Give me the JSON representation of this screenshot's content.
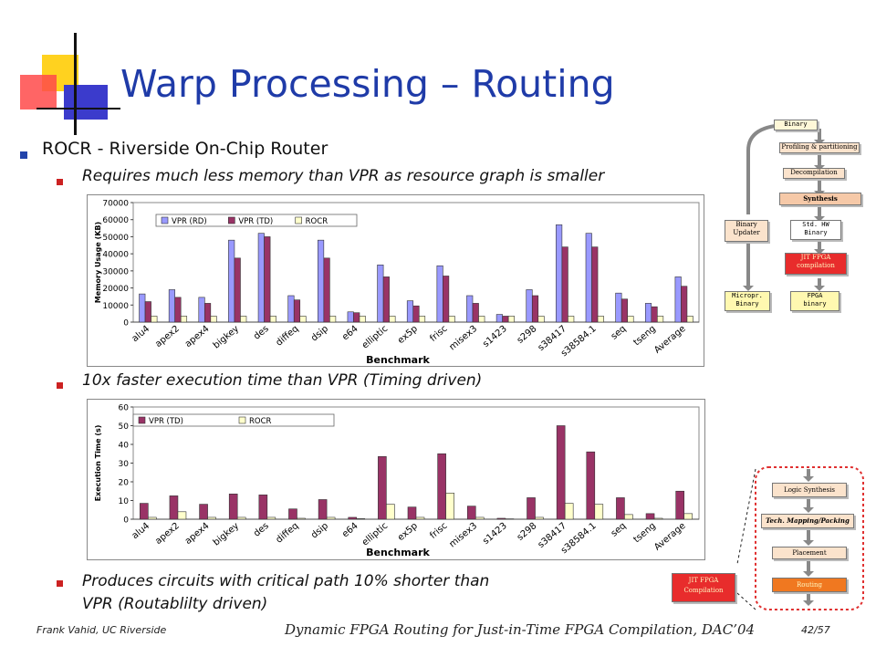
{
  "slide": {
    "title": "Warp Processing – Routing",
    "bullet1": "ROCR - Riverside On-Chip Router",
    "sub1": "Requires much less memory than VPR as resource graph is smaller",
    "sub2": "10x faster execution time than VPR (Timing driven)",
    "sub3_line1": "Produces circuits with critical path 10% shorter than",
    "sub3_line2": "VPR (Routablilty driven)",
    "footer_left": "Frank Vahid, UC Riverside",
    "footer_center": "Dynamic FPGA Routing for Just-in-Time FPGA Compilation, DAC’04",
    "page": "42/57"
  },
  "colors": {
    "title": "#1f3ba8",
    "vpr_rd": "#9999ff",
    "vpr_td": "#993366",
    "rocr": "#ffffcc",
    "jit_red": "#e82c2c",
    "routing_orange": "#f07820"
  },
  "flow": {
    "binary": "Binary",
    "profiling": "Profiling & partitioning",
    "decompilation": "Decompilation",
    "synthesis": "Synthesis",
    "std_hw_1": "Std. HW",
    "std_hw_2": "Binary",
    "jit_1": "JIT FPGA",
    "jit_2": "compilation",
    "fpga_1": "FPGA",
    "fpga_2": "binary",
    "binary_updater_1": "Binary",
    "binary_updater_2": "Updater",
    "micropr_1": "Micropr.",
    "micropr_2": "Binary"
  },
  "subflow": {
    "logic_synthesis": "Logic Synthesis",
    "tech_mapping": "Tech. Mapping/Packing",
    "placement": "Placement",
    "routing": "Routing",
    "jit_1": "JIT FPGA",
    "jit_2": "Compilation"
  },
  "chart_data": [
    {
      "type": "bar",
      "ylabel": "Memory Usage (KB)",
      "xlabel": "Benchmark",
      "ylim": [
        0,
        70000
      ],
      "yticks": [
        "0",
        "10000",
        "20000",
        "30000",
        "40000",
        "50000",
        "60000",
        "70000"
      ],
      "legend_position": "top",
      "categories": [
        "alu4",
        "apex2",
        "apex4",
        "bigkey",
        "des",
        "diffeq",
        "dsip",
        "e64",
        "elliptic",
        "ex5p",
        "frisc",
        "misex3",
        "s1423",
        "s298",
        "s38417",
        "s38584.1",
        "seq",
        "tseng",
        "Average"
      ],
      "series": [
        {
          "name": "VPR (RD)",
          "values": [
            16500,
            19000,
            14500,
            48000,
            52000,
            15500,
            48000,
            6000,
            33500,
            12500,
            33000,
            15500,
            4500,
            19000,
            57000,
            52000,
            17000,
            11000,
            26500
          ]
        },
        {
          "name": "VPR (TD)",
          "values": [
            12000,
            14500,
            11000,
            37500,
            50000,
            13000,
            37500,
            5500,
            26500,
            9500,
            27000,
            11000,
            3500,
            15500,
            44000,
            44000,
            13500,
            9000,
            21000
          ]
        },
        {
          "name": "ROCR",
          "values": [
            3500,
            3500,
            3500,
            3500,
            3500,
            3500,
            3500,
            3500,
            3500,
            3500,
            3500,
            3500,
            3500,
            3500,
            3500,
            3500,
            3500,
            3500,
            3500
          ]
        }
      ]
    },
    {
      "type": "bar",
      "ylabel": "Execution Time (s)",
      "xlabel": "Benchmark",
      "ylim": [
        0,
        60
      ],
      "yticks": [
        "0",
        "10",
        "20",
        "30",
        "40",
        "50",
        "60"
      ],
      "legend_position": "top",
      "categories": [
        "alu4",
        "apex2",
        "apex4",
        "bigkey",
        "des",
        "diffeq",
        "dsip",
        "e64",
        "elliptic",
        "ex5p",
        "frisc",
        "misex3",
        "s1423",
        "s298",
        "s38417",
        "s38584.1",
        "seq",
        "tseng",
        "Average"
      ],
      "series": [
        {
          "name": "VPR (TD)",
          "values": [
            8.5,
            12.5,
            8,
            13.5,
            13,
            5.5,
            10.5,
            1,
            33.5,
            6.5,
            35,
            7,
            0.5,
            11.5,
            50,
            36,
            11.5,
            3,
            15
          ]
        },
        {
          "name": "ROCR",
          "values": [
            1,
            4,
            1,
            1,
            1,
            0.5,
            1,
            0.3,
            8,
            1,
            14,
            1,
            0.2,
            1,
            8.5,
            8,
            2.5,
            0.5,
            3
          ]
        }
      ]
    }
  ]
}
